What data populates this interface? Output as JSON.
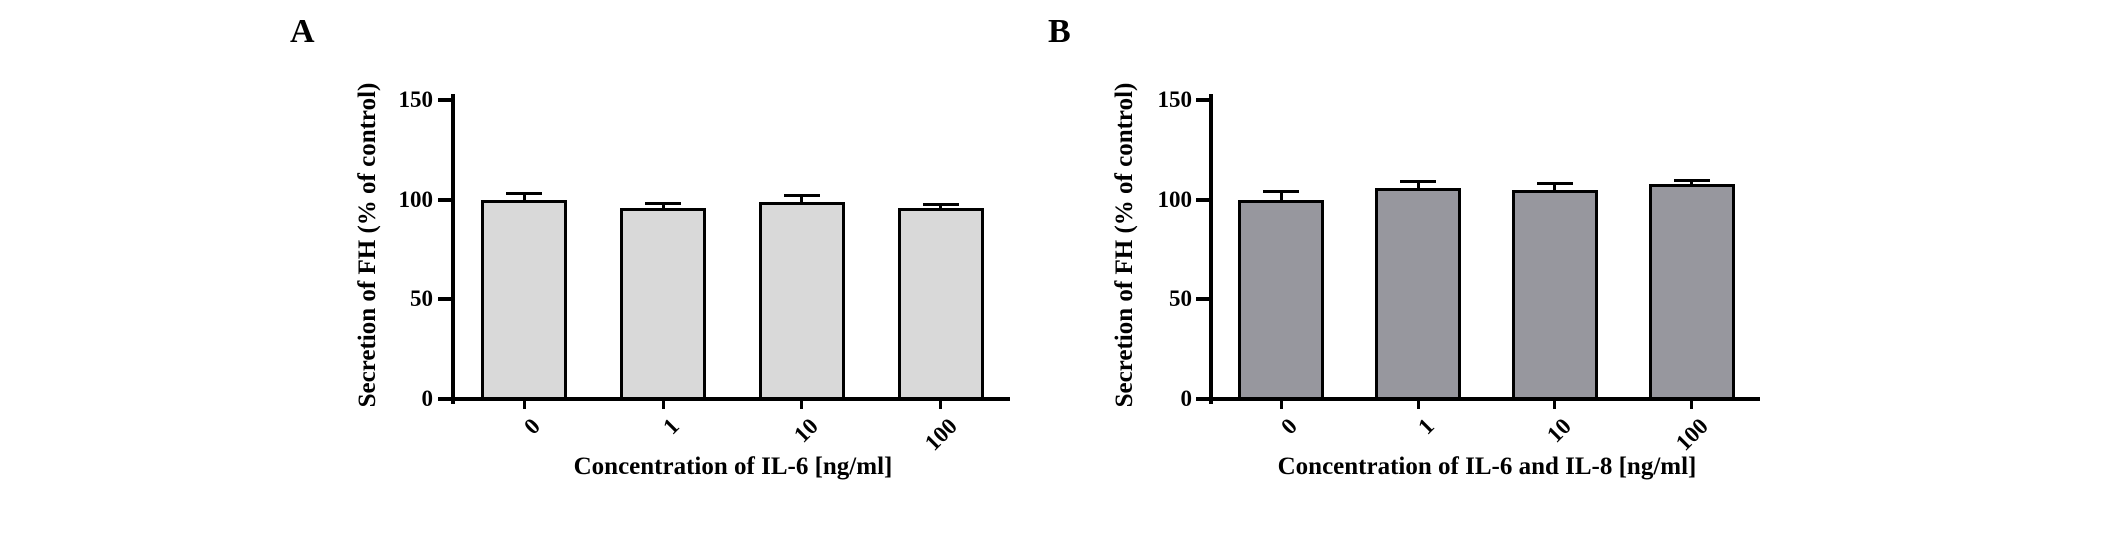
{
  "chart_data": [
    {
      "type": "bar",
      "panel_label": "A",
      "categories": [
        "0",
        "1",
        "10",
        "100"
      ],
      "values": [
        100,
        96,
        99,
        96
      ],
      "errors_upper": [
        3,
        2,
        3,
        1.5
      ],
      "xlabel": "Concentration of IL-6 [ng/ml]",
      "ylabel": "Secretion of FH (% of control)",
      "ylim": [
        0,
        150
      ],
      "yticks": [
        0,
        50,
        100,
        150
      ],
      "bar_fill": "#d9d9d9",
      "bar_border": "#000000",
      "grid": false,
      "legend": "none"
    },
    {
      "type": "bar",
      "panel_label": "B",
      "categories": [
        "0",
        "1",
        "10",
        "100"
      ],
      "values": [
        100,
        106,
        105,
        108
      ],
      "errors_upper": [
        4,
        3,
        3,
        1.5
      ],
      "xlabel": "Concentration of IL-6 and IL-8 [ng/ml]",
      "ylabel": "Secretion of FH (% of control)",
      "ylim": [
        0,
        150
      ],
      "yticks": [
        0,
        50,
        100,
        150
      ],
      "bar_fill": "#97979e",
      "bar_border": "#000000",
      "grid": false,
      "legend": "none"
    }
  ]
}
